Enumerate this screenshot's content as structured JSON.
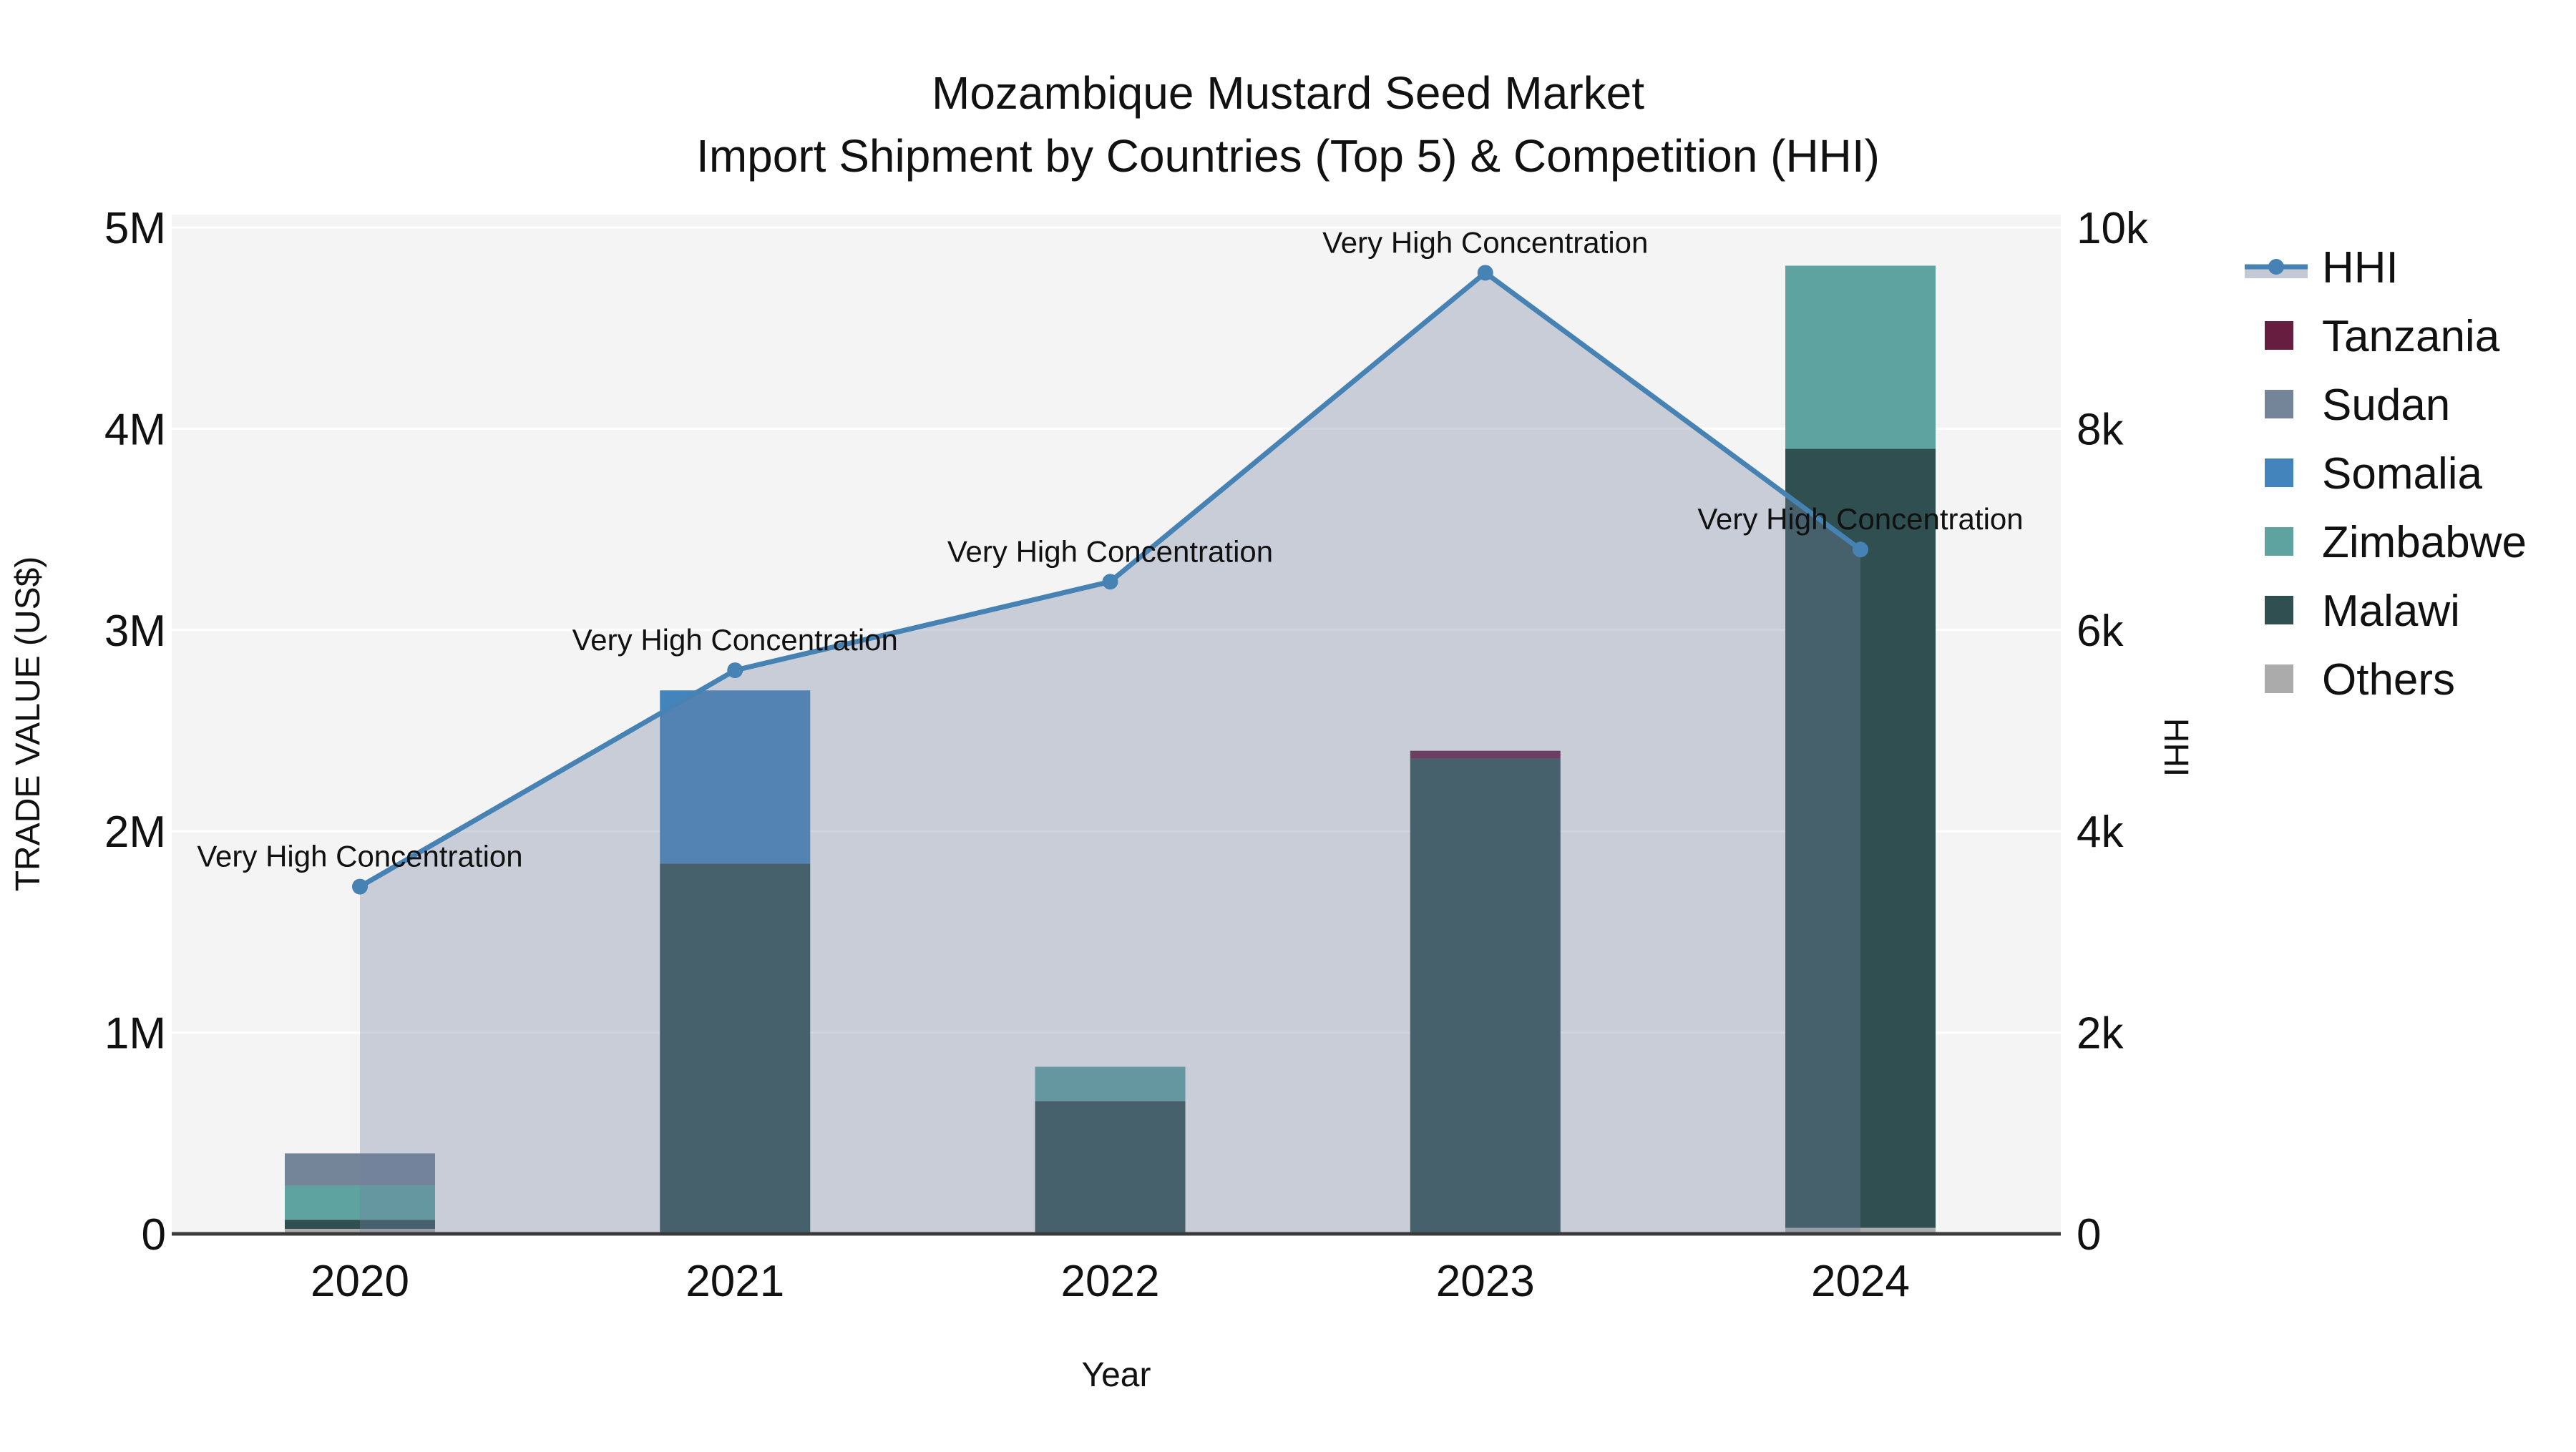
{
  "title": {
    "line1": "Mozambique Mustard Seed Market",
    "line2": "Import Shipment by Countries (Top 5) & Competition (HHI)"
  },
  "axes": {
    "x_label": "Year",
    "y_left_label": "TRADE VALUE (US$)",
    "y_right_label": "HHI"
  },
  "legend": {
    "order": [
      "HHI",
      "Tanzania",
      "Sudan",
      "Somalia",
      "Zimbabwe",
      "Malawi",
      "Others"
    ]
  },
  "chart_data": {
    "type": "combo",
    "subtype": "stacked-bar + area-line",
    "categories": [
      "2020",
      "2021",
      "2022",
      "2023",
      "2024"
    ],
    "bar_series": [
      {
        "name": "Tanzania",
        "color": "#671d40",
        "values": [
          0,
          0,
          0,
          40000,
          0
        ]
      },
      {
        "name": "Sudan",
        "color": "#74859a",
        "values": [
          160000,
          0,
          0,
          0,
          0
        ]
      },
      {
        "name": "Somalia",
        "color": "#4384bd",
        "values": [
          0,
          860000,
          0,
          0,
          0
        ]
      },
      {
        "name": "Zimbabwe",
        "color": "#5fa3a1",
        "values": [
          170000,
          0,
          170000,
          0,
          910000
        ]
      },
      {
        "name": "Malawi",
        "color": "#2f4f51",
        "values": [
          45000,
          1840000,
          660000,
          2360000,
          3870000
        ]
      },
      {
        "name": "Others",
        "color": "#ababab",
        "values": [
          25000,
          0,
          0,
          0,
          30000
        ]
      }
    ],
    "stack_order_bottom_to_top": [
      "Others",
      "Malawi",
      "Zimbabwe",
      "Somalia",
      "Sudan",
      "Tanzania"
    ],
    "line_series": {
      "name": "HHI",
      "axis": "right",
      "color": "#4682b4",
      "area_fill": "rgba(113,130,160,0.34)",
      "values": [
        3450,
        5600,
        6480,
        9550,
        6800
      ]
    },
    "annotations": [
      {
        "text": "Very High Concentration",
        "category": "2020",
        "value": 3450
      },
      {
        "text": "Very High Concentration",
        "category": "2021",
        "value": 5600
      },
      {
        "text": "Very High Concentration",
        "category": "2022",
        "value": 6480
      },
      {
        "text": "Very High Concentration",
        "category": "2023",
        "value": 9550
      },
      {
        "text": "Very High Concentration",
        "category": "2024",
        "value": 6800
      }
    ],
    "y_left": {
      "label": "TRADE VALUE (US$)",
      "range": [
        0,
        5000000
      ],
      "tick_values": [
        0,
        1000000,
        2000000,
        3000000,
        4000000,
        5000000
      ],
      "tick_labels": [
        "0",
        "1M",
        "2M",
        "3M",
        "4M",
        "5M"
      ]
    },
    "y_right": {
      "label": "HHI",
      "range": [
        0,
        10000
      ],
      "tick_values": [
        0,
        2000,
        4000,
        6000,
        8000,
        10000
      ],
      "tick_labels": [
        "0",
        "2k",
        "4k",
        "6k",
        "8k",
        "10k"
      ]
    },
    "x": {
      "label": "Year"
    },
    "grid": true,
    "legend_position": "right",
    "plot_background": "#f4f4f5",
    "grid_color": "#ffffff",
    "axis_line_color": "#3b3b3b"
  }
}
